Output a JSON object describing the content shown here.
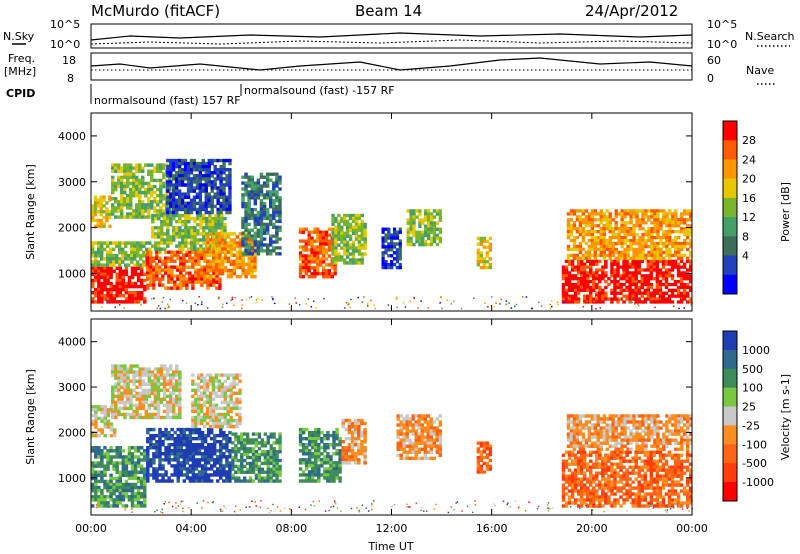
{
  "header": {
    "station": "McMurdo (fitACF)",
    "beam": "Beam 14",
    "date": "24/Apr/2012"
  },
  "top_panel": {
    "left_label": "N.Sky",
    "right_label": "N.Search",
    "left_ticks": [
      "10^5",
      "10^0"
    ],
    "right_ticks": [
      "10^5",
      "10^0"
    ]
  },
  "freq_panel": {
    "left_label": "Freq.",
    "left_unit": "[MHz]",
    "right_label": "Nave",
    "left_ticks": [
      "18",
      "8"
    ],
    "right_ticks": [
      "60",
      "0"
    ]
  },
  "cpid": {
    "label": "CPID",
    "entries": [
      "normalsound (fast) 157 RF",
      "normalsound (fast) -157 RF"
    ]
  },
  "chart_data": [
    {
      "type": "heatmap",
      "quantity": "Power",
      "ylabel": "Slant Range [km]",
      "ylim": [
        180,
        4500
      ],
      "yticks": [
        "1000",
        "2000",
        "3000",
        "4000"
      ],
      "colorbar_label": "Power [dB]",
      "colorbar_ticks": [
        "28",
        "24",
        "20",
        "16",
        "12",
        "8",
        "4"
      ],
      "colorbar_colors": [
        "#ff0000",
        "#ff5a00",
        "#ff9600",
        "#e6c800",
        "#7ab42d",
        "#44a066",
        "#3c6e5a",
        "#2040c0",
        "#0000ff"
      ],
      "patches": [
        {
          "t0": 0.0,
          "t1": 2.2,
          "r0": 350,
          "r1": 1150,
          "level": 0
        },
        {
          "t0": 0.0,
          "t1": 2.4,
          "r0": 1150,
          "r1": 1700,
          "level": 4
        },
        {
          "t0": 0.0,
          "t1": 0.8,
          "r0": 2000,
          "r1": 2700,
          "level": 3
        },
        {
          "t0": 0.8,
          "t1": 3.2,
          "r0": 2200,
          "r1": 3400,
          "level": 4
        },
        {
          "t0": 2.2,
          "t1": 5.2,
          "r0": 650,
          "r1": 1500,
          "level": 1
        },
        {
          "t0": 2.4,
          "t1": 5.4,
          "r0": 1500,
          "r1": 2300,
          "level": 4
        },
        {
          "t0": 3.0,
          "t1": 5.6,
          "r0": 2300,
          "r1": 3500,
          "level": 7
        },
        {
          "t0": 4.6,
          "t1": 6.6,
          "r0": 900,
          "r1": 1900,
          "level": 2
        },
        {
          "t0": 6.0,
          "t1": 7.6,
          "r0": 1400,
          "r1": 3200,
          "level": 6
        },
        {
          "t0": 8.3,
          "t1": 9.8,
          "r0": 900,
          "r1": 2000,
          "level": 1
        },
        {
          "t0": 9.6,
          "t1": 11.0,
          "r0": 1200,
          "r1": 2300,
          "level": 4
        },
        {
          "t0": 11.6,
          "t1": 12.4,
          "r0": 1100,
          "r1": 2000,
          "level": 7
        },
        {
          "t0": 12.6,
          "t1": 14.0,
          "r0": 1600,
          "r1": 2400,
          "level": 4
        },
        {
          "t0": 15.4,
          "t1": 16.0,
          "r0": 1100,
          "r1": 1800,
          "level": 3
        },
        {
          "t0": 18.8,
          "t1": 24.0,
          "r0": 350,
          "r1": 1300,
          "level": 0
        },
        {
          "t0": 19.0,
          "t1": 24.0,
          "r0": 1300,
          "r1": 2400,
          "level": 2
        }
      ]
    },
    {
      "type": "heatmap",
      "quantity": "Velocity",
      "ylabel": "Slant Range [km]",
      "ylim": [
        180,
        4500
      ],
      "xlabel": "Time UT",
      "xticks": [
        "00:00",
        "04:00",
        "08:00",
        "12:00",
        "16:00",
        "20:00",
        "00:00"
      ],
      "xlim_hours": [
        0,
        24
      ],
      "yticks": [
        "1000",
        "2000",
        "3000",
        "4000"
      ],
      "colorbar_label": "Velocity [m s-1]",
      "colorbar_ticks": [
        "1000",
        "500",
        "100",
        "25",
        "-25",
        "-100",
        "-500",
        "-1000"
      ],
      "colorbar_colors": [
        "#1e3cb4",
        "#2f6a8c",
        "#3c8c5a",
        "#78c840",
        "#c8c8c8",
        "#ff8c1e",
        "#ff6414",
        "#ff3c0a",
        "#ff0000"
      ],
      "patches": [
        {
          "t0": 0.0,
          "t1": 2.2,
          "r0": 350,
          "r1": 1700,
          "level": 2
        },
        {
          "t0": 0.0,
          "t1": 1.0,
          "r0": 1900,
          "r1": 2600,
          "level": 4
        },
        {
          "t0": 0.8,
          "t1": 3.6,
          "r0": 2300,
          "r1": 3500,
          "level": 4
        },
        {
          "t0": 2.2,
          "t1": 5.6,
          "r0": 900,
          "r1": 2100,
          "level": 0
        },
        {
          "t0": 4.0,
          "t1": 6.0,
          "r0": 2100,
          "r1": 3300,
          "level": 4
        },
        {
          "t0": 5.6,
          "t1": 7.6,
          "r0": 900,
          "r1": 2000,
          "level": 2
        },
        {
          "t0": 8.3,
          "t1": 10.0,
          "r0": 900,
          "r1": 2100,
          "level": 2
        },
        {
          "t0": 10.0,
          "t1": 11.0,
          "r0": 1300,
          "r1": 2300,
          "level": 5
        },
        {
          "t0": 12.2,
          "t1": 14.0,
          "r0": 1400,
          "r1": 2400,
          "level": 5
        },
        {
          "t0": 15.4,
          "t1": 16.0,
          "r0": 1100,
          "r1": 1800,
          "level": 6
        },
        {
          "t0": 18.8,
          "t1": 24.0,
          "r0": 350,
          "r1": 1600,
          "level": 6
        },
        {
          "t0": 19.0,
          "t1": 24.0,
          "r0": 1600,
          "r1": 2400,
          "level": 5
        }
      ]
    }
  ]
}
